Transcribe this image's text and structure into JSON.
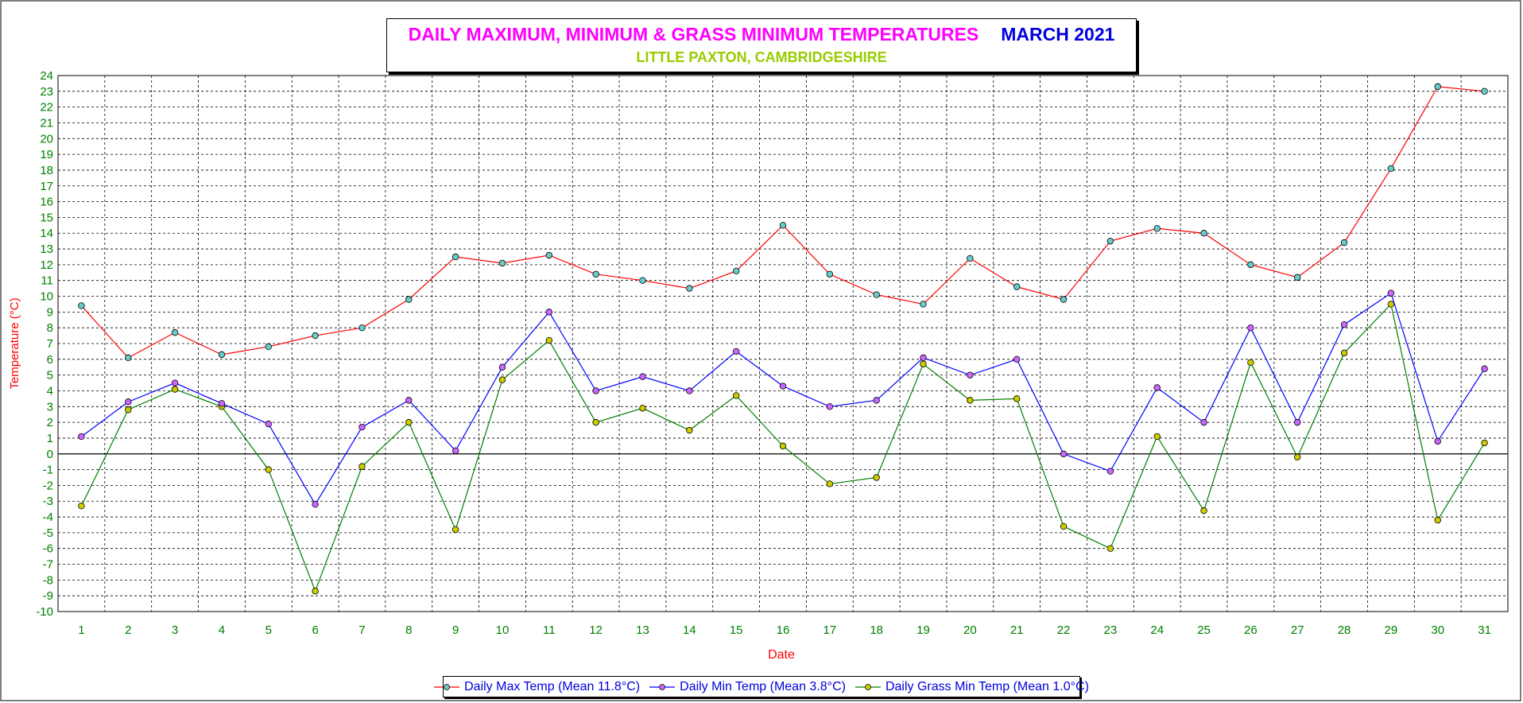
{
  "header": {
    "title": "DAILY MAXIMUM, MINIMUM & GRASS MINIMUM TEMPERATURES",
    "month": "MARCH 2021",
    "subtitle": "LITTLE PAXTON, CAMBRIDGESHIRE"
  },
  "colors": {
    "title": "#ff00ff",
    "month": "#0000e0",
    "subtitle": "#99cc00",
    "axis_text": "#008000",
    "axis_title": "#ff0000",
    "max_line": "#ff0000",
    "min_line": "#0000ff",
    "grass_line": "#008000",
    "max_marker": "#66cccc",
    "min_marker": "#cc66ff",
    "grass_marker": "#cccc00"
  },
  "chart_data": {
    "type": "line",
    "xlabel": "Date",
    "ylabel": "Temperature (°C)",
    "ylim": [
      -10,
      24
    ],
    "grid": true,
    "legend_position": "bottom-center",
    "x": [
      1,
      2,
      3,
      4,
      5,
      6,
      7,
      8,
      9,
      10,
      11,
      12,
      13,
      14,
      15,
      16,
      17,
      18,
      19,
      20,
      21,
      22,
      23,
      24,
      25,
      26,
      27,
      28,
      29,
      30,
      31
    ],
    "series": [
      {
        "name": "Daily Max Temp (Mean 11.8°C)",
        "key": "max",
        "values": [
          9.4,
          6.1,
          7.7,
          6.3,
          6.8,
          7.5,
          8.0,
          9.8,
          12.5,
          12.1,
          12.6,
          11.4,
          11.0,
          10.5,
          11.6,
          14.5,
          11.4,
          10.1,
          9.5,
          12.4,
          10.6,
          9.8,
          13.5,
          14.3,
          14.0,
          12.0,
          11.2,
          13.4,
          18.1,
          23.3,
          23.0
        ]
      },
      {
        "name": "Daily Min Temp (Mean 3.8°C)",
        "key": "min",
        "values": [
          1.1,
          3.3,
          4.5,
          3.2,
          1.9,
          -3.2,
          1.7,
          3.4,
          0.2,
          5.5,
          9.0,
          4.0,
          4.9,
          4.0,
          6.5,
          4.3,
          3.0,
          3.4,
          6.1,
          5.0,
          6.0,
          0.0,
          -1.1,
          4.2,
          2.0,
          8.0,
          2.0,
          8.2,
          10.2,
          0.8,
          5.4
        ]
      },
      {
        "name": "Daily Grass Min Temp (Mean 1.0°C)",
        "key": "grass",
        "values": [
          -3.3,
          2.8,
          4.1,
          3.0,
          -1.0,
          -8.7,
          -0.8,
          2.0,
          -4.8,
          4.7,
          7.2,
          2.0,
          2.9,
          1.5,
          3.7,
          0.5,
          -1.9,
          -1.5,
          5.7,
          3.4,
          3.5,
          -4.6,
          -6.0,
          1.1,
          -3.6,
          5.8,
          -0.2,
          6.4,
          9.5,
          -4.2,
          0.7
        ]
      }
    ]
  }
}
